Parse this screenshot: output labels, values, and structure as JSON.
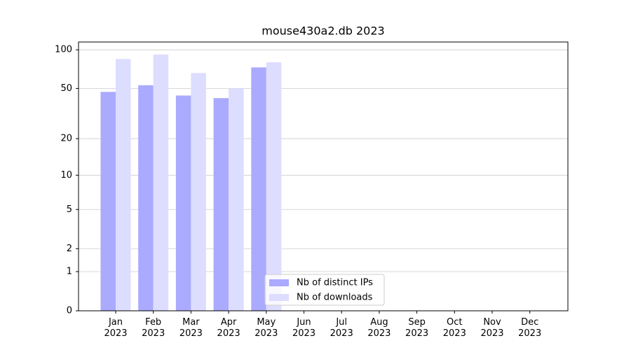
{
  "chart_data": {
    "type": "bar",
    "title": "mouse430a2.db 2023",
    "categories": [
      "Jan 2023",
      "Feb 2023",
      "Mar 2023",
      "Apr 2023",
      "May 2023",
      "Jun 2023",
      "Jul 2023",
      "Aug 2023",
      "Sep 2023",
      "Oct 2023",
      "Nov 2023",
      "Dec 2023"
    ],
    "series": [
      {
        "name": "Nb of distinct IPs",
        "color": "#aaaaff",
        "values": [
          47,
          53,
          44,
          42,
          73,
          0,
          0,
          0,
          0,
          0,
          0,
          0
        ]
      },
      {
        "name": "Nb of downloads",
        "color": "#ddddff",
        "values": [
          85,
          92,
          66,
          50,
          80,
          0,
          0,
          0,
          0,
          0,
          0,
          0
        ]
      }
    ],
    "yscale": "log1p",
    "ylim": [
      0,
      115
    ],
    "yticks": [
      0,
      1,
      2,
      5,
      10,
      20,
      50,
      100
    ],
    "grid": true,
    "legend": "lower center"
  }
}
